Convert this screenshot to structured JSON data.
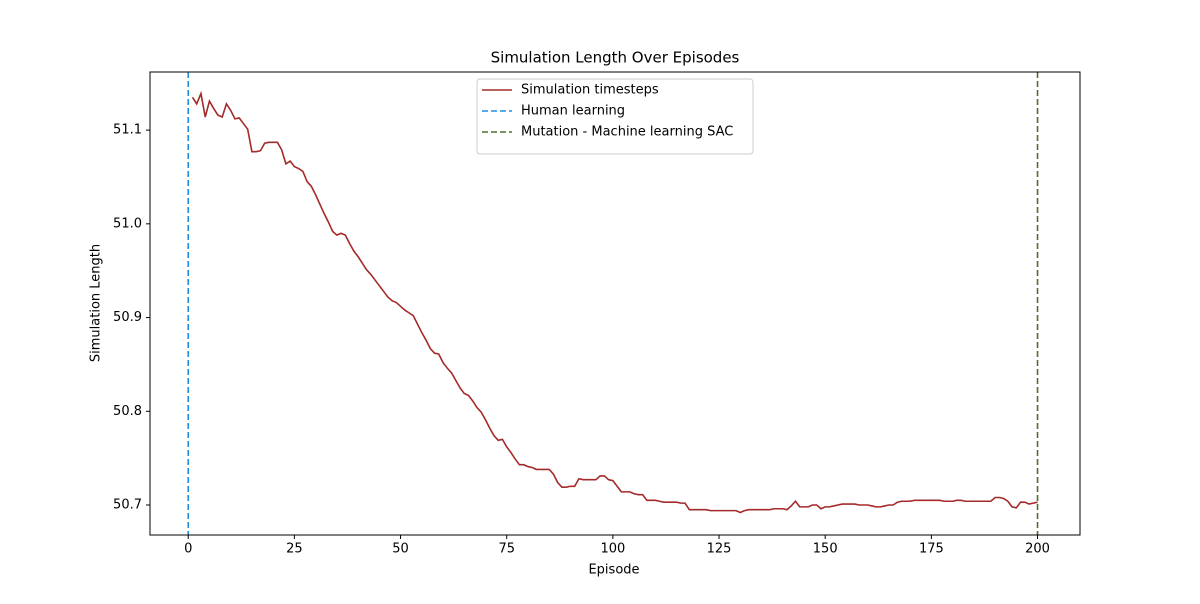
{
  "chart_data": {
    "type": "line",
    "title": "Simulation Length Over Episodes",
    "xlabel": "Episode",
    "ylabel": "Simulation Length",
    "x": [
      1,
      2,
      3,
      4,
      5,
      6,
      7,
      8,
      9,
      10,
      11,
      12,
      13,
      14,
      15,
      16,
      17,
      18,
      19,
      20,
      21,
      22,
      23,
      24,
      25,
      26,
      27,
      28,
      29,
      30,
      31,
      32,
      33,
      34,
      35,
      36,
      37,
      38,
      39,
      40,
      41,
      42,
      43,
      44,
      45,
      46,
      47,
      48,
      49,
      50,
      51,
      52,
      53,
      54,
      55,
      56,
      57,
      58,
      59,
      60,
      61,
      62,
      63,
      64,
      65,
      66,
      67,
      68,
      69,
      70,
      71,
      72,
      73,
      74,
      75,
      76,
      77,
      78,
      79,
      80,
      81,
      82,
      83,
      84,
      85,
      86,
      87,
      88,
      89,
      90,
      91,
      92,
      93,
      94,
      95,
      96,
      97,
      98,
      99,
      100,
      101,
      102,
      103,
      104,
      105,
      106,
      107,
      108,
      109,
      110,
      111,
      112,
      113,
      114,
      115,
      116,
      117,
      118,
      119,
      120,
      121,
      122,
      123,
      124,
      125,
      126,
      127,
      128,
      129,
      130,
      131,
      132,
      133,
      134,
      135,
      136,
      137,
      138,
      139,
      140,
      141,
      142,
      143,
      144,
      145,
      146,
      147,
      148,
      149,
      150,
      151,
      152,
      153,
      154,
      155,
      156,
      157,
      158,
      159,
      160,
      161,
      162,
      163,
      164,
      165,
      166,
      167,
      168,
      169,
      170,
      171,
      172,
      173,
      174,
      175,
      176,
      177,
      178,
      179,
      180,
      181,
      182,
      183,
      184,
      185,
      186,
      187,
      188,
      189,
      190,
      191,
      192,
      193,
      194,
      195,
      196,
      197,
      198,
      199,
      200
    ],
    "series": [
      {
        "name": "Simulation timesteps",
        "color": "#a52a2a",
        "values": [
          51.135,
          51.128,
          51.139,
          51.114,
          51.131,
          51.123,
          51.116,
          51.114,
          51.128,
          51.121,
          51.112,
          51.113,
          51.107,
          51.101,
          51.077,
          51.077,
          51.078,
          51.086,
          51.087,
          51.087,
          51.087,
          51.079,
          51.064,
          51.067,
          51.061,
          51.059,
          51.056,
          51.045,
          51.04,
          51.031,
          51.021,
          51.011,
          51.002,
          50.992,
          50.988,
          50.99,
          50.988,
          50.979,
          50.971,
          50.965,
          50.958,
          50.951,
          50.946,
          50.94,
          50.934,
          50.928,
          50.922,
          50.918,
          50.916,
          50.912,
          50.908,
          50.905,
          50.902,
          50.893,
          50.884,
          50.876,
          50.867,
          50.862,
          50.861,
          50.852,
          50.846,
          50.841,
          50.833,
          50.825,
          50.819,
          50.817,
          50.811,
          50.804,
          50.799,
          50.791,
          50.782,
          50.774,
          50.769,
          50.77,
          50.762,
          50.756,
          50.749,
          50.743,
          50.743,
          50.741,
          50.74,
          50.738,
          50.738,
          50.738,
          50.738,
          50.733,
          50.724,
          50.719,
          50.719,
          50.72,
          50.72,
          50.728,
          50.727,
          50.727,
          50.727,
          50.727,
          50.731,
          50.731,
          50.727,
          50.726,
          50.72,
          50.714,
          50.714,
          50.714,
          50.712,
          50.711,
          50.711,
          50.705,
          50.705,
          50.705,
          50.704,
          50.703,
          50.703,
          50.703,
          50.703,
          50.702,
          50.702,
          50.695,
          50.695,
          50.695,
          50.695,
          50.695,
          50.694,
          50.694,
          50.694,
          50.694,
          50.694,
          50.694,
          50.694,
          50.692,
          50.694,
          50.695,
          50.695,
          50.695,
          50.695,
          50.695,
          50.695,
          50.696,
          50.696,
          50.696,
          50.695,
          50.699,
          50.704,
          50.698,
          50.698,
          50.698,
          50.7,
          50.7,
          50.696,
          50.698,
          50.698,
          50.699,
          50.7,
          50.701,
          50.701,
          50.701,
          50.701,
          50.7,
          50.7,
          50.7,
          50.699,
          50.698,
          50.698,
          50.699,
          50.7,
          50.7,
          50.703,
          50.704,
          50.704,
          50.704,
          50.705,
          50.705,
          50.705,
          50.705,
          50.705,
          50.705,
          50.705,
          50.704,
          50.704,
          50.704,
          50.705,
          50.705,
          50.704,
          50.704,
          50.704,
          50.704,
          50.704,
          50.704,
          50.704,
          50.708,
          50.708,
          50.707,
          50.704,
          50.698,
          50.697,
          50.703,
          50.703,
          50.701,
          50.702,
          50.703
        ]
      }
    ],
    "vlines": [
      {
        "name": "Human learning",
        "x": 0,
        "color": "#1f8fe0"
      },
      {
        "name": "Mutation - Machine learning SAC",
        "x": 200,
        "color": "#556b2f"
      }
    ],
    "xlim": [
      -9,
      210
    ],
    "xticks": [
      0,
      25,
      50,
      75,
      100,
      125,
      150,
      175,
      200
    ],
    "ylim": [
      50.668,
      51.162
    ],
    "yticks": [
      50.7,
      50.8,
      50.9,
      {
        "value": 51.0,
        "label": "51.0"
      },
      51.1
    ],
    "legend": "upper center"
  }
}
